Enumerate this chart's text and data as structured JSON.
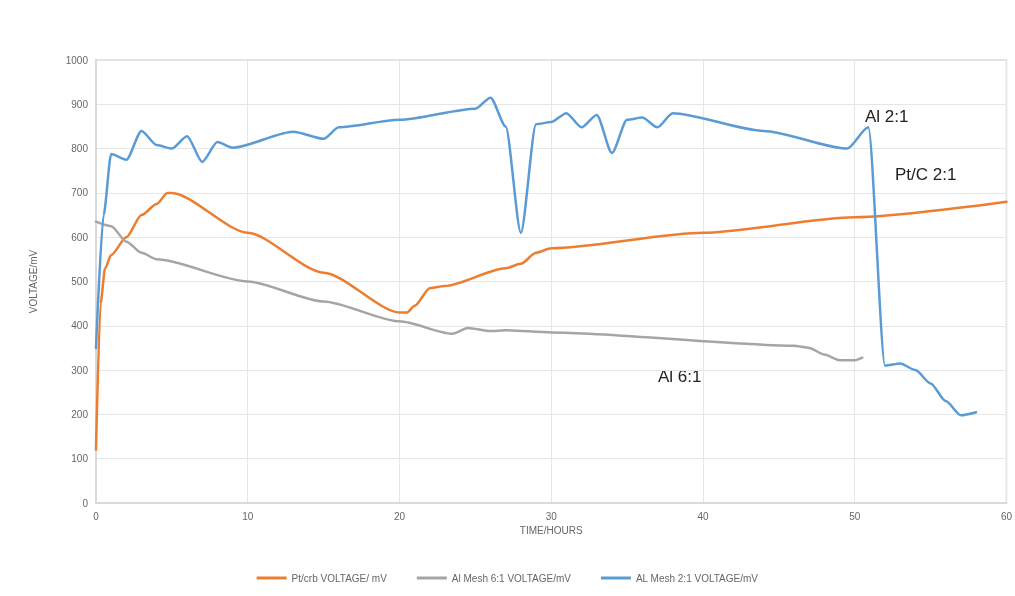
{
  "chart_data": {
    "type": "line",
    "xlabel": "TIME/HOURS",
    "ylabel": "VOLTAGE/mV",
    "xlim": [
      0,
      60
    ],
    "xticks": [
      0,
      10,
      20,
      30,
      40,
      50,
      60
    ],
    "ylim": [
      0,
      1000
    ],
    "yticks": [
      0,
      100,
      200,
      300,
      400,
      500,
      600,
      700,
      800,
      900,
      1000
    ],
    "grid": true,
    "legend": "bottom",
    "marker": "none",
    "line_style": "solid",
    "series": [
      {
        "name": "Pt/crb VOLTAGE/ mV",
        "color": "#ed7d31",
        "x": [
          0,
          0.3,
          0.6,
          1,
          2,
          3,
          4,
          4.7,
          5,
          10,
          15,
          20,
          20.5,
          21,
          22,
          23,
          27,
          28,
          29,
          30,
          40,
          50,
          60
        ],
        "values": [
          120,
          450,
          530,
          560,
          600,
          650,
          675,
          700,
          700,
          610,
          520,
          430,
          430,
          445,
          485,
          490,
          530,
          540,
          565,
          575,
          610,
          645,
          680
        ]
      },
      {
        "name": "Al Mesh 6:1 VOLTAGE/mV",
        "color": "#a5a5a5",
        "x": [
          0,
          1,
          2,
          3,
          4,
          10,
          15,
          20,
          23.5,
          24.5,
          26,
          27,
          30,
          46,
          47,
          48,
          49,
          50,
          50.5
        ],
        "values": [
          635,
          625,
          590,
          565,
          550,
          500,
          455,
          410,
          382,
          395,
          388,
          390,
          385,
          355,
          350,
          335,
          322,
          322,
          328
        ]
      },
      {
        "name": "AL Mesh 2:1 VOLTAGE/mV",
        "color": "#5b9bd5",
        "x": [
          0,
          0.5,
          1,
          2,
          3,
          4,
          5,
          6,
          7,
          8,
          9,
          13,
          15,
          16,
          20,
          25,
          26,
          27,
          28,
          29,
          30,
          31,
          32,
          33,
          34,
          35,
          36,
          37,
          38,
          44,
          49.5,
          50.9,
          52,
          53,
          54,
          55,
          56,
          57,
          58
        ],
        "values": [
          350,
          650,
          788,
          775,
          840,
          808,
          800,
          828,
          770,
          815,
          802,
          838,
          822,
          848,
          865,
          890,
          915,
          850,
          610,
          855,
          860,
          880,
          848,
          876,
          790,
          865,
          870,
          848,
          880,
          840,
          800,
          848,
          310,
          315,
          300,
          270,
          230,
          198,
          205
        ]
      }
    ],
    "annotations": [
      "Al 2:1",
      "Pt/C 2:1",
      "Al 6:1"
    ]
  }
}
